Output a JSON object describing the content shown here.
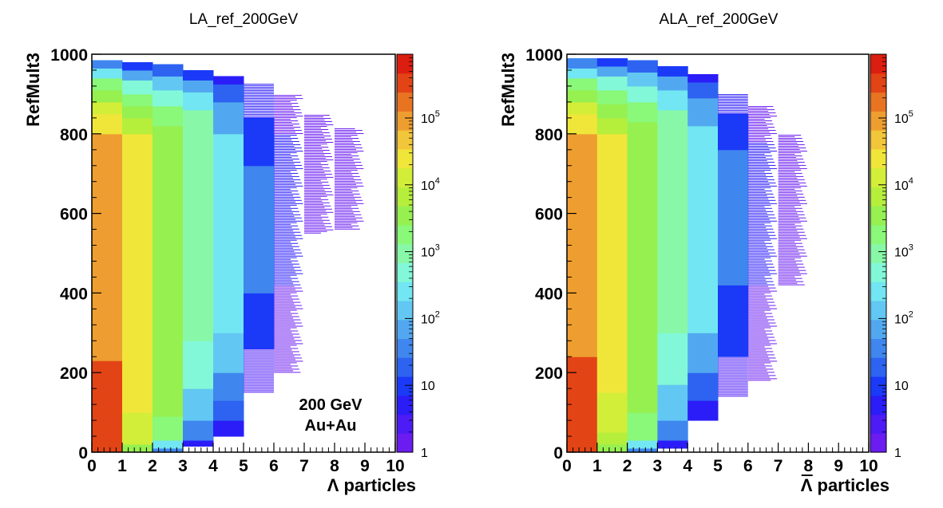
{
  "chart_data": [
    {
      "type": "heatmap",
      "title": "LA_ref_200GeV",
      "xlabel": "Λ particles",
      "ylabel": "RefMult3",
      "xlim": [
        0,
        10
      ],
      "ylim": [
        0,
        1000
      ],
      "zscale": "log",
      "zlim": [
        1,
        900000
      ],
      "x_ticks": [
        "0",
        "1",
        "2",
        "3",
        "4",
        "5",
        "6",
        "7",
        "8",
        "9",
        "10"
      ],
      "y_ticks": [
        "0",
        "200",
        "400",
        "600",
        "800",
        "1000"
      ],
      "z_ticks": [
        "1",
        "10",
        "10^2",
        "10^3",
        "10^4",
        "10^5"
      ],
      "annotation": [
        "200 GeV",
        "Au+Au"
      ],
      "bins": [
        {
          "x": 0,
          "ymax": 985,
          "segments": [
            [
              0,
              90,
              600000
            ],
            [
              90,
              230,
              350000
            ],
            [
              230,
              550,
              150000
            ],
            [
              550,
              800,
              90000
            ],
            [
              800,
              850,
              40000
            ],
            [
              850,
              880,
              15000
            ],
            [
              880,
              910,
              5000
            ],
            [
              910,
              940,
              1500
            ],
            [
              940,
              965,
              300
            ],
            [
              965,
              985,
              30
            ]
          ]
        },
        {
          "x": 1,
          "ymax": 980,
          "segments": [
            [
              0,
              20,
              3000
            ],
            [
              20,
              100,
              15000
            ],
            [
              100,
              800,
              30000
            ],
            [
              800,
              840,
              8000
            ],
            [
              840,
              870,
              4000
            ],
            [
              870,
              900,
              1500
            ],
            [
              900,
              935,
              400
            ],
            [
              935,
              960,
              80
            ],
            [
              960,
              980,
              10
            ]
          ]
        },
        {
          "x": 2,
          "ymax": 975,
          "segments": [
            [
              0,
              10,
              30
            ],
            [
              10,
              30,
              300
            ],
            [
              30,
              90,
              1500
            ],
            [
              90,
              240,
              4000
            ],
            [
              240,
              820,
              5000
            ],
            [
              820,
              870,
              1500
            ],
            [
              870,
              910,
              400
            ],
            [
              910,
              945,
              90
            ],
            [
              945,
              975,
              15
            ]
          ]
        },
        {
          "x": 3,
          "ymax": 960,
          "segments": [
            [
              15,
              30,
              5
            ],
            [
              30,
              80,
              30
            ],
            [
              80,
              160,
              150
            ],
            [
              160,
              280,
              600
            ],
            [
              280,
              860,
              1000
            ],
            [
              860,
              905,
              250
            ],
            [
              905,
              935,
              60
            ],
            [
              935,
              960,
              8
            ]
          ]
        },
        {
          "x": 4,
          "ymax": 945,
          "segments": [
            [
              40,
              80,
              3
            ],
            [
              80,
              130,
              12
            ],
            [
              130,
              200,
              40
            ],
            [
              200,
              300,
              90
            ],
            [
              300,
              800,
              200
            ],
            [
              800,
              880,
              60
            ],
            [
              880,
              925,
              15
            ],
            [
              925,
              945,
              3
            ]
          ]
        },
        {
          "x": 5,
          "ymax": 925,
          "segments": [
            [
              150,
              260,
              2
            ],
            [
              260,
              400,
              8
            ],
            [
              400,
              720,
              25
            ],
            [
              720,
              840,
              10
            ],
            [
              840,
              925,
              3
            ]
          ]
        },
        {
          "x": 6,
          "ymax": 900,
          "segments": [
            [
              200,
              420,
              1
            ],
            [
              420,
              800,
              3
            ],
            [
              800,
              900,
              1
            ]
          ]
        },
        {
          "x": 7,
          "ymax": 850,
          "segments": [
            [
              550,
              850,
              1
            ]
          ]
        },
        {
          "x": 8,
          "ymax": 815,
          "segments": [
            [
              560,
              815,
              1
            ]
          ]
        }
      ]
    },
    {
      "type": "heatmap",
      "title": "ALA_ref_200GeV",
      "xlabel": "Λ particles",
      "xlabel_overline": true,
      "ylabel": "RefMult3",
      "xlim": [
        0,
        10
      ],
      "ylim": [
        0,
        1000
      ],
      "zscale": "log",
      "zlim": [
        1,
        900000
      ],
      "x_ticks": [
        "0",
        "1",
        "2",
        "3",
        "4",
        "5",
        "6",
        "7",
        "8",
        "9",
        "10"
      ],
      "y_ticks": [
        "0",
        "200",
        "400",
        "600",
        "800",
        "1000"
      ],
      "z_ticks": [
        "1",
        "10",
        "10^2",
        "10^3",
        "10^4",
        "10^5"
      ],
      "bins": [
        {
          "x": 0,
          "ymax": 990,
          "segments": [
            [
              0,
              90,
              600000
            ],
            [
              90,
              240,
              350000
            ],
            [
              240,
              640,
              150000
            ],
            [
              640,
              800,
              90000
            ],
            [
              800,
              850,
              40000
            ],
            [
              850,
              880,
              15000
            ],
            [
              880,
              910,
              5000
            ],
            [
              910,
              940,
              1500
            ],
            [
              940,
              965,
              300
            ],
            [
              965,
              990,
              30
            ]
          ]
        },
        {
          "x": 1,
          "ymax": 990,
          "segments": [
            [
              0,
              20,
              3000
            ],
            [
              20,
              50,
              8000
            ],
            [
              50,
              150,
              15000
            ],
            [
              150,
              800,
              30000
            ],
            [
              800,
              840,
              8000
            ],
            [
              840,
              875,
              4000
            ],
            [
              875,
              910,
              1500
            ],
            [
              910,
              945,
              400
            ],
            [
              945,
              970,
              80
            ],
            [
              970,
              990,
              10
            ]
          ]
        },
        {
          "x": 2,
          "ymax": 985,
          "segments": [
            [
              0,
              10,
              30
            ],
            [
              10,
              30,
              300
            ],
            [
              30,
              100,
              1500
            ],
            [
              100,
              300,
              4000
            ],
            [
              300,
              830,
              5000
            ],
            [
              830,
              880,
              1500
            ],
            [
              880,
              920,
              400
            ],
            [
              920,
              955,
              90
            ],
            [
              955,
              985,
              15
            ]
          ]
        },
        {
          "x": 3,
          "ymax": 970,
          "segments": [
            [
              10,
              30,
              5
            ],
            [
              30,
              80,
              30
            ],
            [
              80,
              170,
              150
            ],
            [
              170,
              300,
              600
            ],
            [
              300,
              860,
              1000
            ],
            [
              860,
              910,
              250
            ],
            [
              910,
              945,
              60
            ],
            [
              945,
              970,
              8
            ]
          ]
        },
        {
          "x": 4,
          "ymax": 950,
          "segments": [
            [
              80,
              130,
              4
            ],
            [
              130,
              200,
              15
            ],
            [
              200,
              300,
              50
            ],
            [
              300,
              820,
              200
            ],
            [
              820,
              890,
              60
            ],
            [
              890,
              930,
              15
            ],
            [
              930,
              950,
              3
            ]
          ]
        },
        {
          "x": 5,
          "ymax": 900,
          "segments": [
            [
              140,
              240,
              2
            ],
            [
              240,
              420,
              8
            ],
            [
              420,
              760,
              25
            ],
            [
              760,
              850,
              10
            ],
            [
              850,
              900,
              3
            ]
          ]
        },
        {
          "x": 6,
          "ymax": 870,
          "segments": [
            [
              180,
              420,
              1
            ],
            [
              420,
              780,
              3
            ],
            [
              780,
              870,
              1
            ]
          ]
        },
        {
          "x": 7,
          "ymax": 800,
          "segments": [
            [
              420,
              800,
              1
            ]
          ]
        }
      ]
    }
  ]
}
